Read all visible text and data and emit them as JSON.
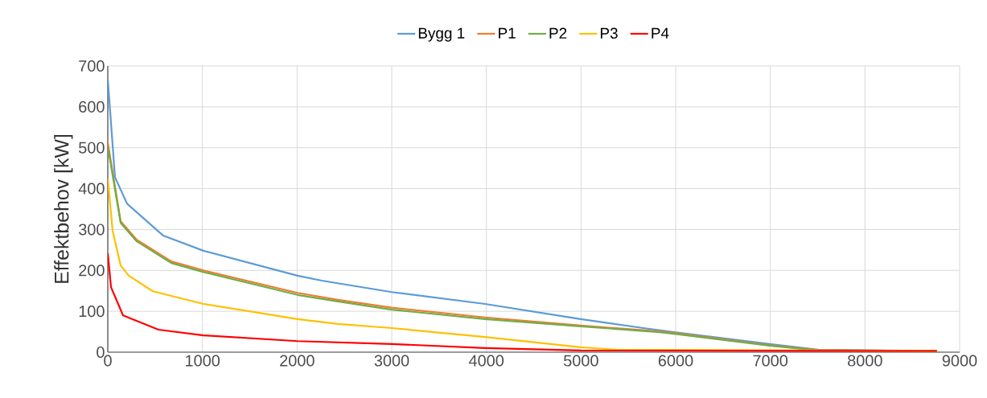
{
  "chart_data": {
    "type": "line",
    "ylabel": "Effektbehov [kW]",
    "series": [
      {
        "name": "Bygg 1",
        "color": "#5b9bd5",
        "x": [
          0,
          76,
          204,
          586,
          1011,
          2005,
          2260,
          2999,
          3985,
          4996,
          5658,
          5981,
          6992,
          7502,
          8760
        ],
        "values": [
          668,
          428,
          363,
          285,
          248,
          187,
          175,
          147,
          118,
          81,
          59,
          49,
          20,
          6,
          3
        ]
      },
      {
        "name": "P1",
        "color": "#ed7d31",
        "x": [
          0,
          136,
          306,
          671,
          1011,
          2005,
          2430,
          2999,
          3985,
          4996,
          5828,
          5981,
          6992,
          7502,
          8760
        ],
        "values": [
          513,
          320,
          275,
          222,
          200,
          145,
          128,
          109,
          85,
          65,
          51,
          47,
          17,
          5,
          3
        ]
      },
      {
        "name": "P2",
        "color": "#70ad47",
        "x": [
          0,
          136,
          306,
          671,
          1011,
          2005,
          2430,
          2999,
          3985,
          4996,
          5828,
          5981,
          6992,
          7502,
          8760
        ],
        "values": [
          503,
          316,
          271,
          218,
          196,
          140,
          124,
          104,
          81,
          63,
          49,
          45,
          16,
          4,
          3
        ]
      },
      {
        "name": "P3",
        "color": "#ffc000",
        "x": [
          0,
          51,
          136,
          221,
          476,
          1011,
          2005,
          2430,
          2999,
          3985,
          4996,
          5378,
          8760
        ],
        "values": [
          424,
          297,
          212,
          187,
          149,
          118,
          81,
          69,
          59,
          37,
          12,
          6,
          3
        ]
      },
      {
        "name": "P4",
        "color": "#ff0000",
        "x": [
          0,
          34,
          161,
          535,
          1011,
          2005,
          2999,
          3985,
          4996,
          8760
        ],
        "values": [
          242,
          159,
          90,
          55,
          41,
          27,
          20,
          10,
          4,
          3
        ]
      }
    ],
    "xlim": [
      0,
      9000
    ],
    "xticks": [
      0,
      1000,
      2000,
      3000,
      4000,
      5000,
      6000,
      7000,
      8000,
      9000
    ],
    "ylim": [
      0,
      700
    ],
    "yticks": [
      0,
      100,
      200,
      300,
      400,
      500,
      600,
      700
    ],
    "grid": true,
    "legend": "top",
    "marker": "none",
    "line_style": "solid"
  }
}
